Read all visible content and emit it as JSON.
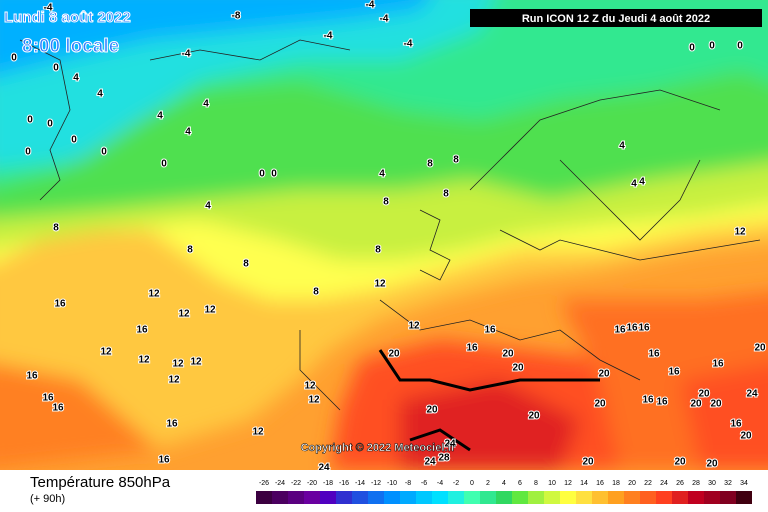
{
  "header": {
    "date": "Lundi 8 août 2022",
    "time": "8:00 locale",
    "run": "Run ICON 12 Z du Jeudi 4 août 2022",
    "copyright": "Copyright © 2022 Meteociel.fr"
  },
  "footer": {
    "title": "Température 850hPa",
    "lead": "(+ 90h)"
  },
  "map": {
    "labels": [
      -4,
      -8,
      -4,
      -4,
      -4,
      -4,
      -4,
      0,
      0,
      0,
      0,
      0,
      0,
      4,
      4,
      4,
      4,
      4,
      0,
      0,
      0,
      0,
      0,
      0,
      0,
      0,
      4,
      4,
      4,
      4,
      4,
      8,
      8,
      8,
      8,
      8,
      8,
      8,
      8,
      8,
      12,
      12,
      12,
      12,
      12,
      12,
      12,
      12,
      12,
      12,
      12,
      12,
      12,
      12,
      16,
      16,
      16,
      16,
      16,
      16,
      16,
      16,
      16,
      16,
      16,
      16,
      16,
      16,
      16,
      16,
      16,
      20,
      20,
      20,
      20,
      20,
      20,
      20,
      20,
      20,
      20,
      20,
      20,
      20,
      20,
      24,
      24,
      28,
      24,
      24,
      20,
      16
    ]
  },
  "legend": {
    "values": [
      -26,
      -24,
      -22,
      -20,
      -18,
      -16,
      -14,
      -12,
      -10,
      -8,
      -6,
      -4,
      -2,
      0,
      2,
      4,
      6,
      8,
      10,
      12,
      14,
      16,
      18,
      20,
      22,
      24,
      26,
      28,
      30,
      32,
      34
    ],
    "colors": [
      "#3b0040",
      "#4b0060",
      "#5a0080",
      "#6a00a0",
      "#5000c0",
      "#3030d0",
      "#2050e0",
      "#1070f0",
      "#0090ff",
      "#00aaff",
      "#00c8ff",
      "#00e0ff",
      "#20f0e0",
      "#40ffb0",
      "#30e890",
      "#30d860",
      "#60e840",
      "#a0f040",
      "#d0f840",
      "#ffff40",
      "#ffe040",
      "#ffc030",
      "#ffa020",
      "#ff8020",
      "#ff6020",
      "#ff4020",
      "#e02020",
      "#c00020",
      "#a00020",
      "#800020",
      "#400010"
    ]
  }
}
